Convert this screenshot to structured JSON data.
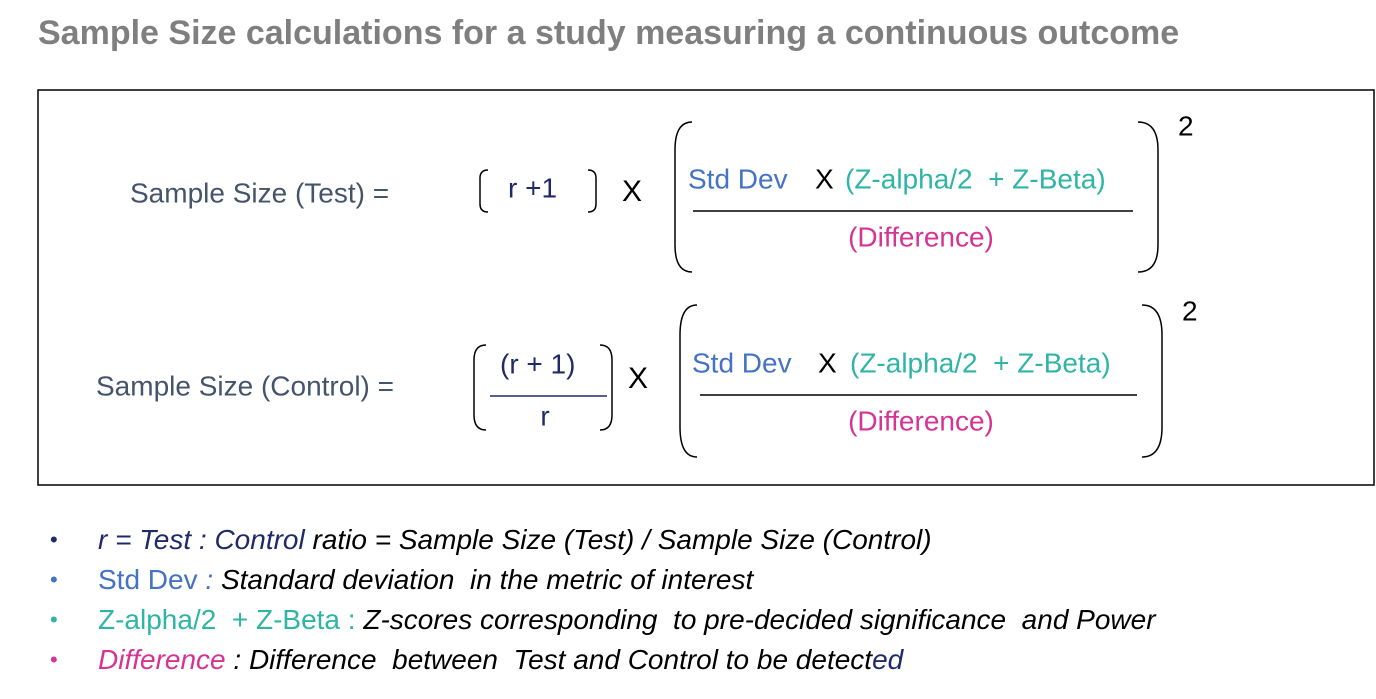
{
  "title": "Sample Size calculations for a study measuring a continuous outcome",
  "formulas": [
    {
      "label": "Sample Size (Test) =",
      "multiplier": "r +1",
      "times": "X",
      "numerator": {
        "std_dev": "Std Dev",
        "times": "X",
        "z_scores": "(Z-alpha/2  + Z-Beta)"
      },
      "denominator": "(Difference)",
      "exponent": "2"
    },
    {
      "label": "Sample Size (Control) =",
      "multiplier_numerator": "(r + 1)",
      "multiplier_denominator": "r",
      "times": "X",
      "numerator": {
        "std_dev": "Std Dev",
        "times": "X",
        "z_scores": "(Z-alpha/2  + Z-Beta)"
      },
      "denominator": "(Difference)",
      "exponent": "2"
    }
  ],
  "bullets": [
    [
      "r = Test : Control",
      " ratio = Sample Size (Test) / Sample Size (Control)"
    ],
    [
      "Std Dev",
      " :",
      " Standard deviation  in the metric of interest"
    ],
    [
      "Z-alpha/2  + Z-Beta :",
      " Z-scores corresponding  to pre-decided significance  and Power"
    ],
    [
      "Difference",
      " : Difference  between  Test and Control to be detect",
      "ed"
    ]
  ]
}
